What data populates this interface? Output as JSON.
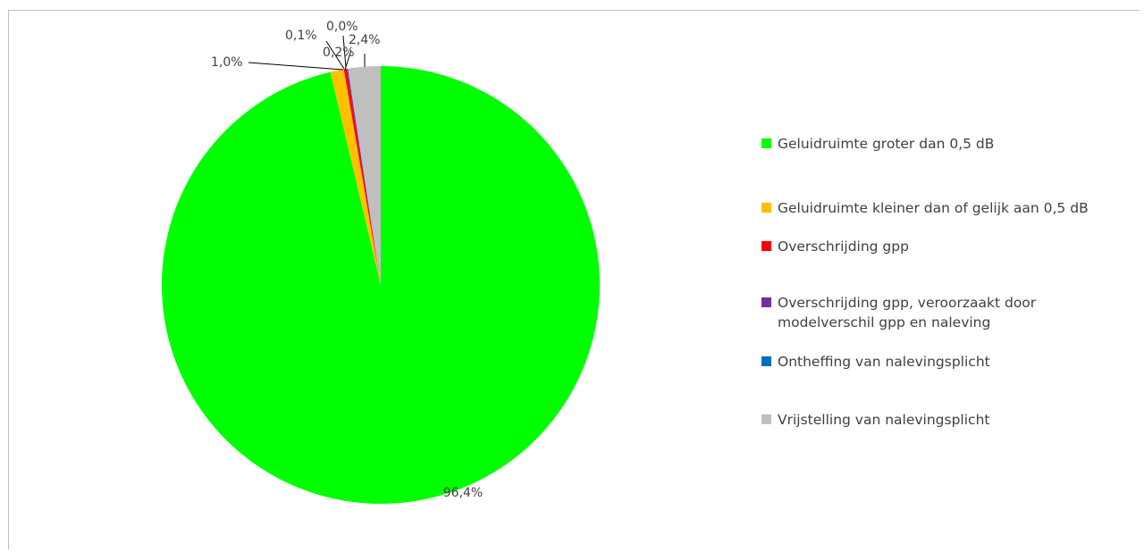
{
  "chart_data": {
    "type": "pie",
    "start_angle": "12 o'clock",
    "direction": "clockwise",
    "slices": [
      {
        "label": "Geluidruimte groter dan 0,5 dB",
        "value": 96.4,
        "value_label": "96,4%",
        "color": "#00ff00"
      },
      {
        "label": "Geluidruimte kleiner dan of gelijk aan 0,5 dB",
        "value": 1.0,
        "value_label": "1,0%",
        "color": "#ffc000"
      },
      {
        "label": "Overschrijding gpp",
        "value": 0.2,
        "value_label": "0,2%",
        "color": "#ff0000"
      },
      {
        "label": "Overschrijding gpp, veroorzaakt door modelverschil gpp en naleving",
        "value": 0.1,
        "value_label": "0,1%",
        "color": "#7030a0"
      },
      {
        "label": "Ontheffing van nalevingsplicht",
        "value": 0.0,
        "value_label": "0,0%",
        "color": "#0070c0"
      },
      {
        "label": "Vrijstelling van nalevingsplicht",
        "value": 2.4,
        "value_label": "2,4%",
        "color": "#bfbfbf"
      }
    ],
    "legend_position": "right"
  }
}
